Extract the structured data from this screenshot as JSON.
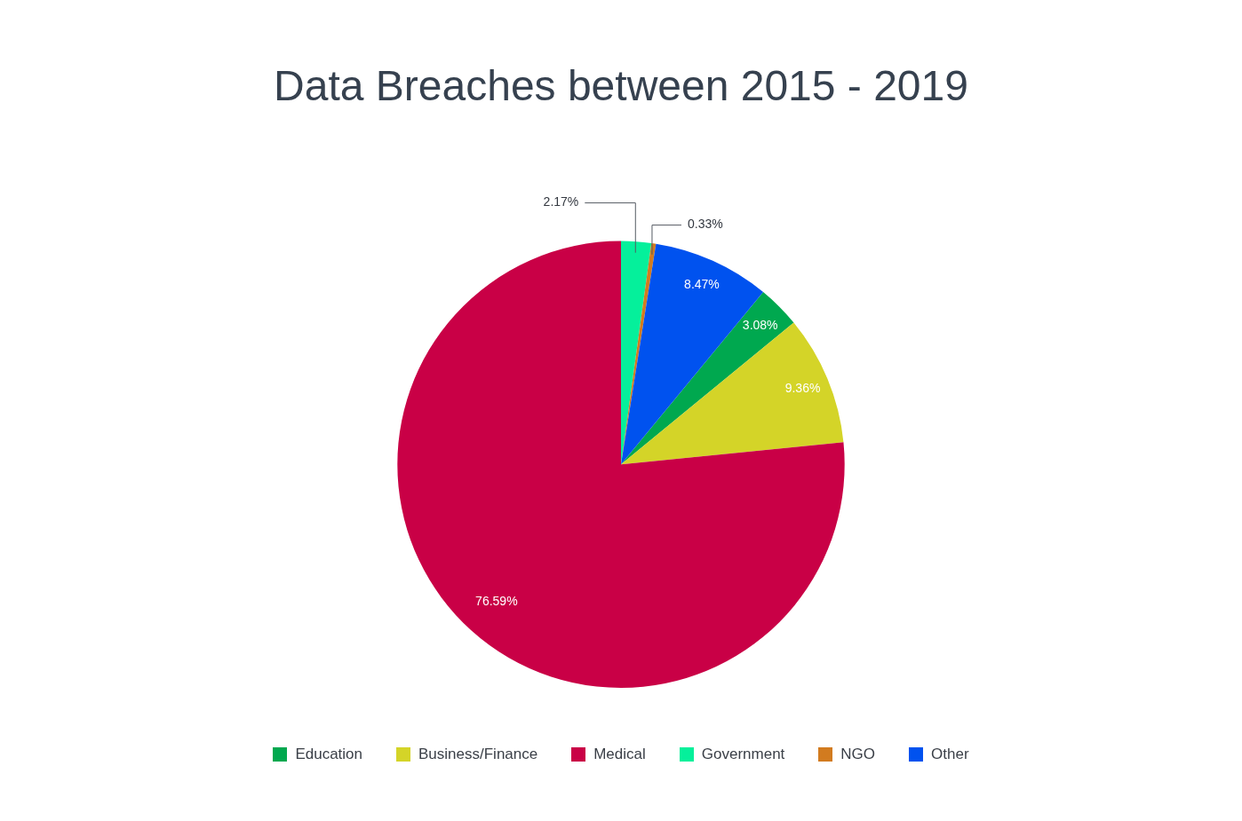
{
  "chart_data": {
    "type": "pie",
    "title": "Data Breaches between 2015 - 2019",
    "categories": [
      "Education",
      "Business/Finance",
      "Medical",
      "Government",
      "NGO",
      "Other"
    ],
    "values": [
      3.08,
      9.36,
      76.59,
      2.17,
      0.33,
      8.47
    ],
    "value_labels": [
      "3.08%",
      "9.36%",
      "76.59%",
      "2.17%",
      "0.33%",
      "8.47%"
    ],
    "colors": [
      "#00a84f",
      "#d4d428",
      "#c90046",
      "#05f09b",
      "#d27b1f",
      "#0052ef"
    ],
    "data_labels": true,
    "legend": "bottom"
  }
}
